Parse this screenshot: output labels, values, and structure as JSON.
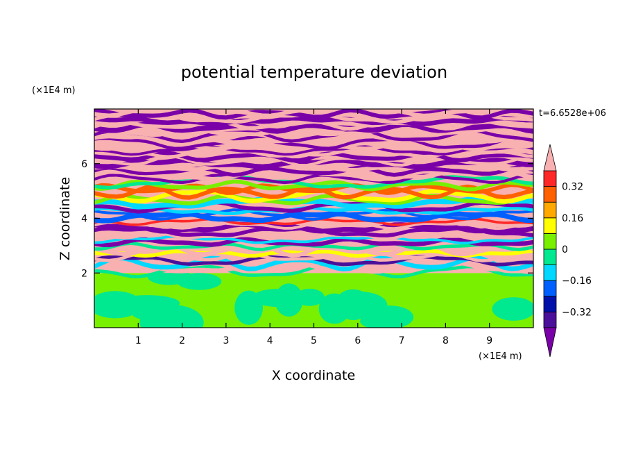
{
  "chart_data": {
    "type": "heatmap",
    "title": "potential temperature deviation",
    "xlabel": "X coordinate",
    "ylabel": "Z coordinate",
    "x_unit": "(×1E4 m)",
    "y_unit": "(×1E4 m)",
    "time_label": "t=6.6528e+06",
    "xlim": [
      0,
      10
    ],
    "ylim": [
      0,
      8
    ],
    "x_ticks": [
      1,
      2,
      3,
      4,
      5,
      6,
      7,
      8,
      9
    ],
    "x_tick_labels": [
      "1",
      "2",
      "3",
      "4",
      "5",
      "6",
      "7",
      "8",
      "9"
    ],
    "y_ticks": [
      2,
      4,
      6
    ],
    "y_tick_labels": [
      "2",
      "4",
      "6"
    ],
    "colorbar": {
      "levels": [
        -0.48,
        -0.4,
        -0.32,
        -0.24,
        -0.16,
        -0.08,
        0,
        0.08,
        0.16,
        0.24,
        0.32,
        0.4,
        0.48
      ],
      "labels": [
        "0.32",
        "0.16",
        "0",
        "−0.16",
        "−0.32"
      ],
      "label_values": [
        0.32,
        0.16,
        0,
        -0.16,
        -0.32
      ],
      "colors": [
        "#7a00a8",
        "#4a109a",
        "#0010a8",
        "#0060ff",
        "#00d8ff",
        "#00e890",
        "#78f000",
        "#ffff00",
        "#ffa800",
        "#ff6000",
        "#ff2828",
        "#f8b0b0"
      ],
      "extend": "both"
    },
    "layers": {
      "lower_layer_top": 2.0,
      "lower_layer_description_colors": [
        "#78f000",
        "#00e890"
      ],
      "stratified_band_range": [
        2.0,
        8.0
      ]
    }
  }
}
